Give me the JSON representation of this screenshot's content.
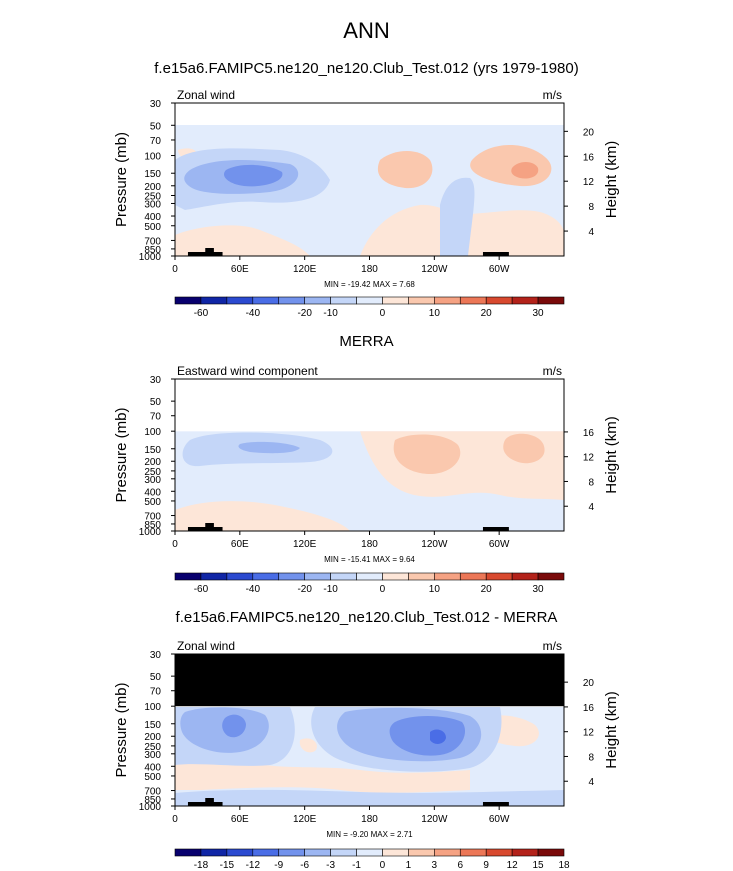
{
  "page": {
    "title": "ANN"
  },
  "palette": {
    "fill_colors": [
      "#08006e",
      "#1026a6",
      "#2b4ad0",
      "#4a6de6",
      "#7292ec",
      "#9cb6f2",
      "#c4d6f8",
      "#e2ecfc",
      "#fde6d8",
      "#fac8ae",
      "#f5a283",
      "#ec7757",
      "#d8492f",
      "#b3221a",
      "#7a0a0a"
    ],
    "zero_band": "#fde6d8",
    "mask": "#000000",
    "frame": "#000000"
  },
  "chart_data": [
    {
      "type": "heatmap",
      "title": "f.e15a6.FAMIPC5.ne120_ne120.Club_Test.012 (yrs 1979-1980)",
      "left_label": "Zonal wind",
      "right_label": "m/s",
      "ylabel": "Pressure (mb)",
      "ylabel_right": "Height (km)",
      "x_ticks": [
        "0",
        "60E",
        "120E",
        "180",
        "120W",
        "60W"
      ],
      "y_ticks": [
        "30",
        "50",
        "70",
        "100",
        "150",
        "200",
        "250",
        "300",
        "400",
        "500",
        "700",
        "850",
        "1000"
      ],
      "height_ticks": [
        "20",
        "16",
        "12",
        "8",
        "4"
      ],
      "stats": "MIN = -19.42   MAX =   7.68",
      "colorbar_labels": [
        "-60",
        "-40",
        "-20",
        "-10",
        "0",
        "10",
        "20",
        "30"
      ],
      "top_pressure": 30,
      "value_range": [
        -19.42,
        7.68
      ]
    },
    {
      "type": "heatmap",
      "title": "MERRA",
      "left_label": "Eastward wind component",
      "right_label": "m/s",
      "ylabel": "Pressure (mb)",
      "ylabel_right": "Height (km)",
      "x_ticks": [
        "0",
        "60E",
        "120E",
        "180",
        "120W",
        "60W"
      ],
      "y_ticks": [
        "30",
        "50",
        "70",
        "100",
        "150",
        "200",
        "250",
        "300",
        "400",
        "500",
        "700",
        "850",
        "1000"
      ],
      "height_ticks": [
        "16",
        "12",
        "8",
        "4"
      ],
      "stats": "MIN = -15.41   MAX =   9.64",
      "colorbar_labels": [
        "-60",
        "-40",
        "-20",
        "-10",
        "0",
        "10",
        "20",
        "30"
      ],
      "top_pressure": 100,
      "value_range": [
        -15.41,
        9.64
      ]
    },
    {
      "type": "heatmap",
      "title": "f.e15a6.FAMIPC5.ne120_ne120.Club_Test.012 - MERRA",
      "left_label": "Zonal wind",
      "right_label": "m/s",
      "ylabel": "Pressure (mb)",
      "ylabel_right": "Height (km)",
      "x_ticks": [
        "0",
        "60E",
        "120E",
        "180",
        "120W",
        "60W"
      ],
      "y_ticks": [
        "30",
        "50",
        "70",
        "100",
        "150",
        "200",
        "250",
        "300",
        "400",
        "500",
        "700",
        "850",
        "1000"
      ],
      "height_ticks": [
        "20",
        "16",
        "12",
        "8",
        "4"
      ],
      "stats": "MIN =  -9.20   MAX =   2.71",
      "colorbar_labels": [
        "-18",
        "-15",
        "-12",
        "-9",
        "-6",
        "-3",
        "-1",
        "0",
        "1",
        "3",
        "6",
        "9",
        "12",
        "15",
        "18"
      ],
      "masked_above_pressure": 100,
      "value_range": [
        -9.2,
        2.71
      ]
    }
  ]
}
